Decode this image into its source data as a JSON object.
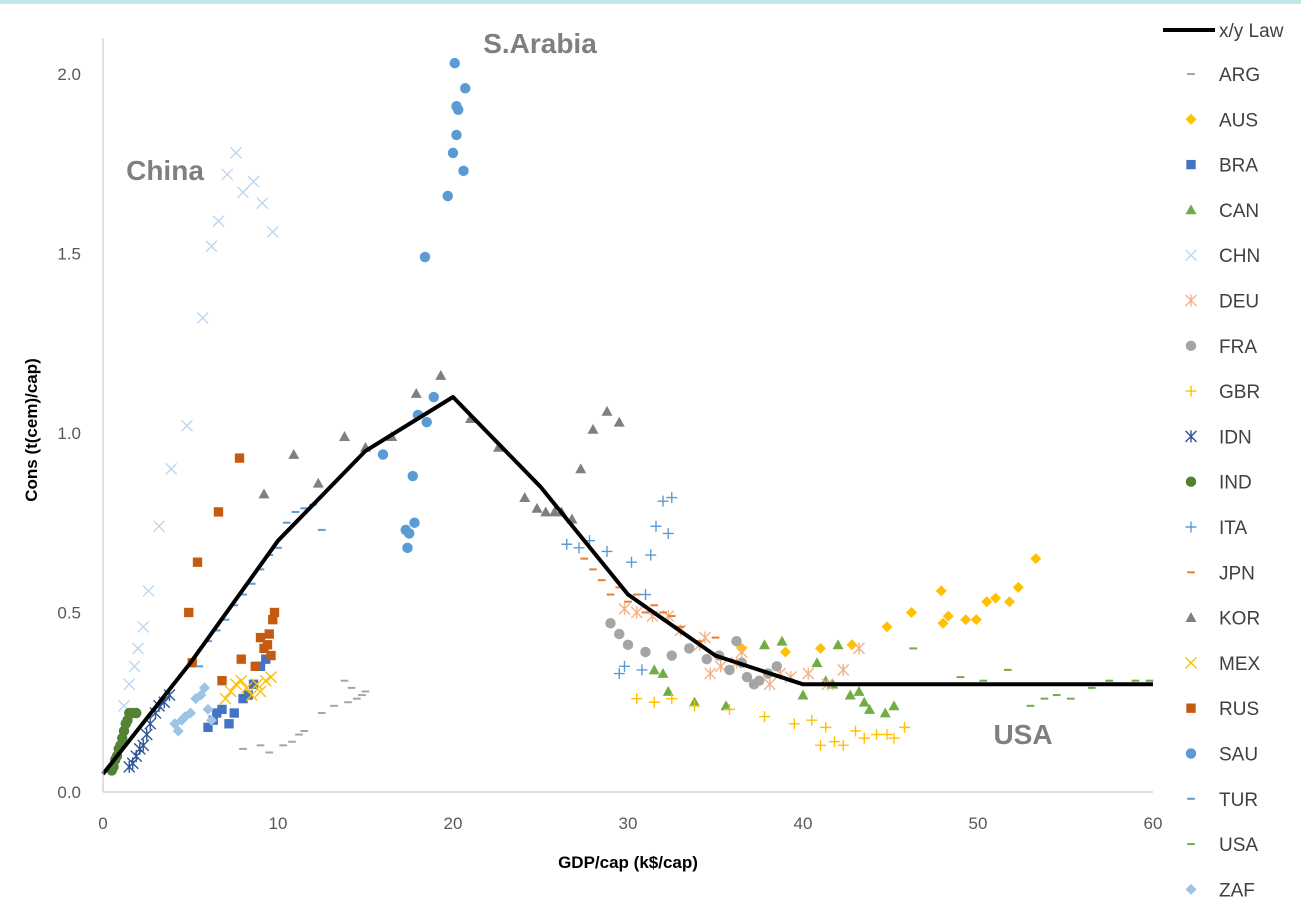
{
  "chart_data": {
    "type": "scatter",
    "xlabel": "GDP/cap (k$/cap)",
    "ylabel": "Cons (t(cem)/cap)",
    "xlim": [
      0,
      60
    ],
    "ylim": [
      0,
      2.1
    ],
    "xticks": [
      "0",
      "10",
      "20",
      "30",
      "40",
      "50",
      "60"
    ],
    "yticks": [
      "0.0",
      "0.5",
      "1.0",
      "1.5",
      "2.0"
    ],
    "grid": false,
    "legend_position": "right",
    "annotations": [
      {
        "text": "China",
        "x": 2.0,
        "y": 1.67
      },
      {
        "text": "S.Arabia",
        "x": 19.3,
        "y": 2.05
      },
      {
        "text": "USA",
        "x": 50.5,
        "y": 0.14
      }
    ],
    "law": {
      "name": "x/y Law",
      "color": "#000000",
      "x": [
        0,
        5,
        10,
        15,
        20,
        25,
        30,
        35,
        40,
        60
      ],
      "y": [
        0.05,
        0.36,
        0.7,
        0.95,
        1.1,
        0.85,
        0.55,
        0.38,
        0.3,
        0.3
      ]
    },
    "series": [
      {
        "name": "ARG",
        "marker": "dash",
        "color": "#a5a5a5",
        "x": [
          8.0,
          9.0,
          9.5,
          10.3,
          10.8,
          11.2,
          11.5,
          12.5,
          13.2,
          14.0,
          14.5,
          15.0,
          14.2,
          14.8,
          13.8
        ],
        "y": [
          0.12,
          0.13,
          0.11,
          0.13,
          0.14,
          0.16,
          0.17,
          0.22,
          0.24,
          0.25,
          0.26,
          0.28,
          0.29,
          0.27,
          0.31
        ]
      },
      {
        "name": "AUS",
        "marker": "diamond",
        "color": "#ffc000",
        "x": [
          36.5,
          39.0,
          41.0,
          42.8,
          44.8,
          46.2,
          47.9,
          48.0,
          48.3,
          49.3,
          49.9,
          50.5,
          51.0,
          51.8,
          52.3,
          53.3
        ],
        "y": [
          0.4,
          0.39,
          0.4,
          0.41,
          0.46,
          0.5,
          0.56,
          0.47,
          0.49,
          0.48,
          0.48,
          0.53,
          0.54,
          0.53,
          0.57,
          0.65
        ]
      },
      {
        "name": "BRA",
        "marker": "square",
        "color": "#4472c4",
        "x": [
          6.0,
          6.3,
          6.5,
          6.8,
          7.2,
          7.5,
          8.0,
          8.3,
          8.6,
          9.0,
          9.3
        ],
        "y": [
          0.18,
          0.2,
          0.22,
          0.23,
          0.19,
          0.22,
          0.26,
          0.27,
          0.3,
          0.35,
          0.37
        ]
      },
      {
        "name": "CAN",
        "marker": "triangle",
        "color": "#70ad47",
        "x": [
          31.5,
          32.0,
          32.3,
          33.8,
          35.6,
          37.8,
          38.8,
          40.0,
          40.8,
          41.3,
          41.7,
          42.0,
          42.7,
          43.2,
          43.5,
          43.8,
          44.7,
          45.2
        ],
        "y": [
          0.34,
          0.33,
          0.28,
          0.25,
          0.24,
          0.41,
          0.42,
          0.27,
          0.36,
          0.31,
          0.3,
          0.41,
          0.27,
          0.28,
          0.25,
          0.23,
          0.22,
          0.24
        ]
      },
      {
        "name": "CHN",
        "marker": "x",
        "color": "#bdd7ee",
        "x": [
          1.2,
          1.5,
          1.8,
          2.0,
          2.3,
          2.6,
          3.2,
          3.9,
          4.8,
          5.7,
          6.2,
          6.6,
          7.1,
          7.6,
          8.0,
          8.6,
          9.1,
          9.7
        ],
        "y": [
          0.24,
          0.3,
          0.35,
          0.4,
          0.46,
          0.56,
          0.74,
          0.9,
          1.02,
          1.32,
          1.52,
          1.59,
          1.72,
          1.78,
          1.67,
          1.7,
          1.64,
          1.56
        ]
      },
      {
        "name": "DEU",
        "marker": "star",
        "color": "#f4b183",
        "x": [
          29.8,
          30.5,
          31.4,
          32.3,
          33.0,
          34.1,
          34.4,
          34.7,
          35.3,
          36.2,
          36.5,
          38.1,
          38.7,
          39.3,
          40.3,
          41.4,
          42.3,
          43.2
        ],
        "y": [
          0.51,
          0.5,
          0.49,
          0.49,
          0.45,
          0.41,
          0.43,
          0.33,
          0.35,
          0.36,
          0.39,
          0.3,
          0.33,
          0.32,
          0.33,
          0.3,
          0.34,
          0.4
        ]
      },
      {
        "name": "FRA",
        "marker": "circle",
        "color": "#a5a5a5",
        "x": [
          29.0,
          29.5,
          30.0,
          31.0,
          32.5,
          33.5,
          34.5,
          35.2,
          35.8,
          36.2,
          36.5,
          36.8,
          37.2,
          37.5,
          38.0,
          38.5
        ],
        "y": [
          0.47,
          0.44,
          0.41,
          0.39,
          0.38,
          0.4,
          0.37,
          0.38,
          0.34,
          0.42,
          0.36,
          0.32,
          0.3,
          0.31,
          0.33,
          0.35
        ]
      },
      {
        "name": "GBR",
        "marker": "plus",
        "color": "#ffc000",
        "x": [
          30.5,
          31.5,
          32.5,
          33.8,
          35.8,
          37.8,
          39.5,
          40.5,
          41.0,
          41.3,
          41.8,
          42.3,
          43.0,
          43.5,
          44.2,
          44.8,
          45.2,
          45.8
        ],
        "y": [
          0.26,
          0.25,
          0.26,
          0.24,
          0.23,
          0.21,
          0.19,
          0.2,
          0.13,
          0.18,
          0.14,
          0.13,
          0.17,
          0.15,
          0.16,
          0.16,
          0.15,
          0.18
        ]
      },
      {
        "name": "IDN",
        "marker": "star",
        "color": "#2f5597",
        "x": [
          1.5,
          1.7,
          1.9,
          2.1,
          2.3,
          2.5,
          2.7,
          3.0,
          3.2,
          3.5,
          3.8
        ],
        "y": [
          0.07,
          0.08,
          0.1,
          0.12,
          0.13,
          0.16,
          0.19,
          0.22,
          0.24,
          0.25,
          0.27
        ]
      },
      {
        "name": "IND",
        "marker": "circle",
        "color": "#548235",
        "x": [
          0.5,
          0.6,
          0.7,
          0.8,
          0.9,
          1.0,
          1.1,
          1.2,
          1.3,
          1.4,
          1.5,
          1.7,
          1.9
        ],
        "y": [
          0.06,
          0.07,
          0.09,
          0.1,
          0.12,
          0.13,
          0.15,
          0.17,
          0.19,
          0.2,
          0.22,
          0.22,
          0.22
        ]
      },
      {
        "name": "ITA",
        "marker": "plus",
        "color": "#5b9bd5",
        "x": [
          26.5,
          27.2,
          27.8,
          28.8,
          29.5,
          29.8,
          30.2,
          30.8,
          31.0,
          31.3,
          31.6,
          32.0,
          32.3,
          32.5
        ],
        "y": [
          0.69,
          0.68,
          0.7,
          0.67,
          0.33,
          0.35,
          0.64,
          0.34,
          0.55,
          0.66,
          0.74,
          0.81,
          0.72,
          0.82
        ]
      },
      {
        "name": "JPN",
        "marker": "dash",
        "color": "#ed7d31",
        "x": [
          27.5,
          28.0,
          28.5,
          29.0,
          29.5,
          30.0,
          30.5,
          31.0,
          31.5,
          32.0,
          32.5,
          33.0,
          34.0,
          35.0
        ],
        "y": [
          0.65,
          0.62,
          0.59,
          0.55,
          0.57,
          0.53,
          0.55,
          0.5,
          0.52,
          0.5,
          0.49,
          0.46,
          0.42,
          0.43
        ]
      },
      {
        "name": "KOR",
        "marker": "triangle",
        "color": "#7f7f7f",
        "x": [
          9.2,
          10.9,
          12.3,
          13.8,
          15.0,
          16.5,
          17.9,
          19.3,
          21.0,
          22.6,
          24.1,
          24.8,
          25.3,
          25.8,
          26.2,
          26.8,
          27.3,
          28.0,
          28.8,
          29.5
        ],
        "y": [
          0.83,
          0.94,
          0.86,
          0.99,
          0.96,
          0.99,
          1.11,
          1.16,
          1.04,
          0.96,
          0.82,
          0.79,
          0.78,
          0.78,
          0.78,
          0.76,
          0.9,
          1.01,
          1.06,
          1.03
        ]
      },
      {
        "name": "MEX",
        "marker": "x",
        "color": "#ffc000",
        "x": [
          7.0,
          7.3,
          7.6,
          7.9,
          8.2,
          8.5,
          8.8,
          9.0,
          9.3,
          9.6
        ],
        "y": [
          0.26,
          0.28,
          0.3,
          0.31,
          0.29,
          0.27,
          0.3,
          0.28,
          0.31,
          0.32
        ]
      },
      {
        "name": "RUS",
        "marker": "square",
        "color": "#c55a11",
        "x": [
          4.9,
          5.1,
          5.4,
          6.6,
          6.8,
          7.8,
          7.9,
          8.7,
          9.0,
          9.2,
          9.4,
          9.5,
          9.6,
          9.7,
          9.8
        ],
        "y": [
          0.5,
          0.36,
          0.64,
          0.78,
          0.31,
          0.93,
          0.37,
          0.35,
          0.43,
          0.4,
          0.41,
          0.44,
          0.38,
          0.48,
          0.5
        ]
      },
      {
        "name": "SAU",
        "marker": "circle",
        "color": "#5b9bd5",
        "x": [
          16.0,
          17.3,
          17.4,
          17.5,
          17.7,
          17.8,
          18.0,
          18.4,
          18.5,
          18.9,
          19.7,
          20.0,
          20.2,
          20.3,
          20.2,
          20.1,
          20.6,
          20.7
        ],
        "y": [
          0.94,
          0.73,
          0.68,
          0.72,
          0.88,
          0.75,
          1.05,
          1.49,
          1.03,
          1.1,
          1.66,
          1.78,
          1.91,
          1.9,
          1.83,
          2.03,
          1.73,
          1.96
        ]
      },
      {
        "name": "TUR",
        "marker": "dash",
        "color": "#5b9bd5",
        "x": [
          5.5,
          6.0,
          6.5,
          7.0,
          7.5,
          8.0,
          8.5,
          9.0,
          9.5,
          10.0,
          10.5,
          11.0,
          11.5,
          12.0,
          12.5
        ],
        "y": [
          0.35,
          0.42,
          0.45,
          0.48,
          0.52,
          0.55,
          0.58,
          0.62,
          0.66,
          0.68,
          0.75,
          0.78,
          0.79,
          0.8,
          0.73
        ]
      },
      {
        "name": "USA",
        "marker": "dash",
        "color": "#70ad47",
        "x": [
          46.3,
          49.0,
          50.3,
          51.7,
          53.0,
          53.8,
          54.5,
          55.3,
          56.5,
          57.5,
          58.2,
          59.0,
          59.8
        ],
        "y": [
          0.4,
          0.32,
          0.31,
          0.34,
          0.24,
          0.26,
          0.27,
          0.26,
          0.29,
          0.31,
          0.3,
          0.31,
          0.31
        ]
      },
      {
        "name": "ZAF",
        "marker": "diamond",
        "color": "#9dc3e6",
        "x": [
          4.1,
          4.3,
          4.5,
          4.7,
          5.0,
          5.3,
          5.6,
          5.8,
          6.0,
          6.2
        ],
        "y": [
          0.19,
          0.17,
          0.2,
          0.21,
          0.22,
          0.26,
          0.27,
          0.29,
          0.23,
          0.2
        ]
      }
    ]
  }
}
